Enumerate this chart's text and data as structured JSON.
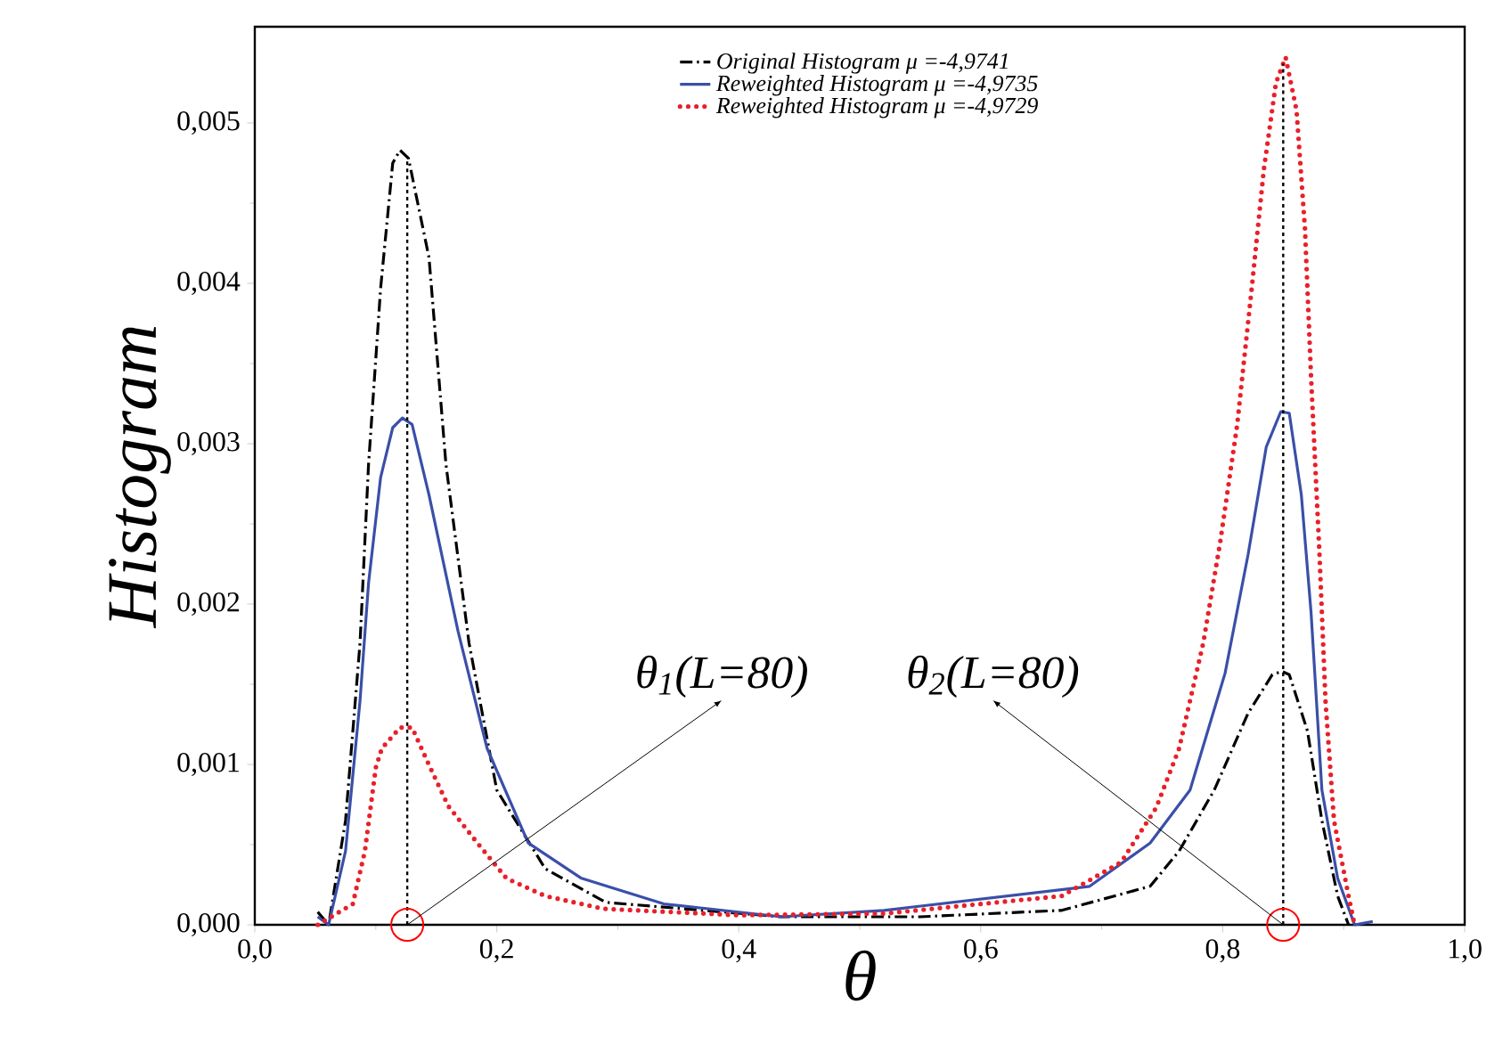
{
  "chart_data": {
    "type": "line",
    "xlabel": "θ",
    "ylabel": "Histogram",
    "xlim": [
      0,
      1
    ],
    "ylim": [
      0,
      0.0056
    ],
    "xticks": [
      {
        "value": 0,
        "label": "0,0"
      },
      {
        "value": 0.2,
        "label": "0,2"
      },
      {
        "value": 0.4,
        "label": "0,4"
      },
      {
        "value": 0.6,
        "label": "0,6"
      },
      {
        "value": 0.8,
        "label": "0,8"
      },
      {
        "value": 1,
        "label": "1,0"
      }
    ],
    "yticks": [
      {
        "value": 0,
        "label": "0,000"
      },
      {
        "value": 0.001,
        "label": "0,001"
      },
      {
        "value": 0.002,
        "label": "0,002"
      },
      {
        "value": 0.003,
        "label": "0,003"
      },
      {
        "value": 0.004,
        "label": "0,004"
      },
      {
        "value": 0.005,
        "label": "0,005"
      }
    ],
    "legend": "top",
    "grid": false,
    "series": [
      {
        "name": "Original Histogram μ =-4,9741",
        "color": "#000000",
        "line_style": "dashdot",
        "x": [
          0.052,
          0.061,
          0.075,
          0.087,
          0.094,
          0.104,
          0.114,
          0.12,
          0.127,
          0.144,
          0.158,
          0.177,
          0.2,
          0.24,
          0.29,
          0.435,
          0.55,
          0.667,
          0.74,
          0.764,
          0.793,
          0.821,
          0.841,
          0.849,
          0.855,
          0.87,
          0.882,
          0.895,
          0.904
        ],
        "values": [
          8e-05,
          0,
          0.00065,
          0.00176,
          0.00287,
          0.00397,
          0.00475,
          0.00483,
          0.00478,
          0.00416,
          0.00287,
          0.00176,
          0.00084,
          0.00035,
          0.00014,
          5e-05,
          5e-05,
          9e-05,
          0.00024,
          0.00046,
          0.00084,
          0.00132,
          0.00156,
          0.00158,
          0.00156,
          0.00121,
          0.00065,
          0.00018,
          0
        ]
      },
      {
        "name": "Reweighted Histogram μ =-4,9735",
        "color": "#3a4fa8",
        "line_style": "solid",
        "x": [
          0.052,
          0.061,
          0.075,
          0.087,
          0.094,
          0.104,
          0.114,
          0.122,
          0.13,
          0.144,
          0.168,
          0.192,
          0.226,
          0.27,
          0.338,
          0.435,
          0.52,
          0.69,
          0.74,
          0.773,
          0.802,
          0.821,
          0.836,
          0.848,
          0.855,
          0.865,
          0.873,
          0.882,
          0.895,
          0.909,
          0.924
        ],
        "values": [
          5e-05,
          0,
          0.00046,
          0.0014,
          0.00213,
          0.00279,
          0.0031,
          0.00316,
          0.00312,
          0.00268,
          0.00183,
          0.0011,
          0.00051,
          0.00029,
          0.00013,
          5e-05,
          9e-05,
          0.00024,
          0.00051,
          0.00084,
          0.00157,
          0.00231,
          0.00298,
          0.0032,
          0.00319,
          0.00268,
          0.00195,
          0.00084,
          0.00029,
          0,
          2e-05
        ]
      },
      {
        "name": "Reweighted Histogram μ =-4,9729",
        "color": "#e8202a",
        "line_style": "dotted",
        "x": [
          0.052,
          0.081,
          0.091,
          0.1,
          0.105,
          0.12,
          0.13,
          0.145,
          0.16,
          0.184,
          0.208,
          0.24,
          0.288,
          0.4,
          0.52,
          0.667,
          0.716,
          0.745,
          0.764,
          0.784,
          0.798,
          0.812,
          0.824,
          0.834,
          0.844,
          0.852,
          0.861,
          0.868,
          0.873,
          0.88,
          0.885,
          0.892,
          0.904,
          0.909
        ],
        "values": [
          0,
          0.00013,
          0.00046,
          0.00098,
          0.0011,
          0.00123,
          0.00123,
          0.00098,
          0.00074,
          0.00051,
          0.00029,
          0.00018,
          0.0001,
          6e-05,
          7e-05,
          0.00018,
          0.00039,
          0.00073,
          0.0011,
          0.00176,
          0.00239,
          0.00312,
          0.00397,
          0.00471,
          0.00525,
          0.00541,
          0.00508,
          0.00434,
          0.00342,
          0.00231,
          0.00139,
          0.00065,
          0.00018,
          0
        ]
      }
    ],
    "ref_lines": [
      {
        "axis": "x",
        "value": 0.126,
        "color": "#000000",
        "line_style": "dotted"
      },
      {
        "axis": "x",
        "value": 0.85,
        "color": "#000000",
        "line_style": "dotted"
      }
    ],
    "annotations": [
      {
        "text": "θ$_{1}$(L=80)",
        "x": 0.126,
        "y": 0
      },
      {
        "text": "θ$_{2}$(L=80)",
        "x": 0.85,
        "y": 0
      }
    ]
  }
}
